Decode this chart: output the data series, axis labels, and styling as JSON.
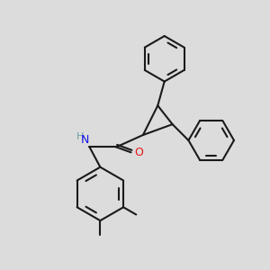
{
  "background_color": "#dcdcdc",
  "line_color": "#1a1a1a",
  "N_color": "#1414e6",
  "O_color": "#e61414",
  "H_color": "#6e9e9e",
  "line_width": 1.5,
  "figsize": [
    3.0,
    3.0
  ],
  "dpi": 100,
  "xlim": [
    0,
    10
  ],
  "ylim": [
    0,
    10
  ]
}
